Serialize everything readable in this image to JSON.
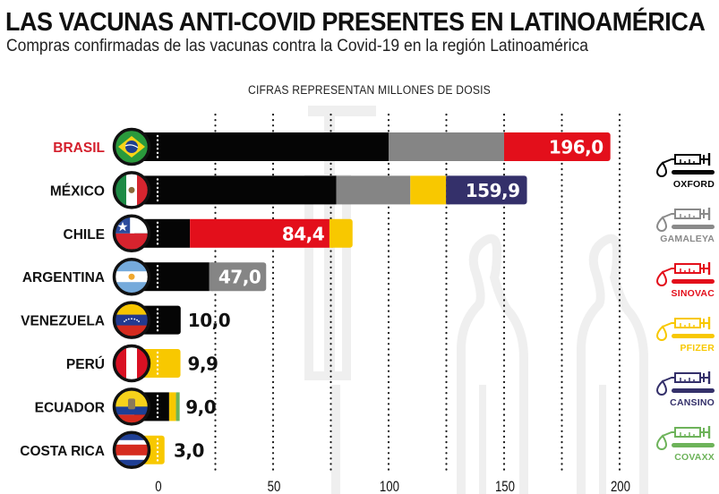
{
  "header": {
    "title": "LAS VACUNAS ANTI-COVID PRESENTES EN LATINOAMÉRICA",
    "subtitle": "Compras confirmadas de las vacunas contra la Covid-19 en la región Latinoamérica",
    "note": "CIFRAS REPRESENTAN MILLONES DE DOSIS"
  },
  "colors": {
    "OXFORD": "#050505",
    "GAMALEYA": "#858585",
    "SINOVAC": "#e30f1b",
    "PFIZER": "#f8c800",
    "CANSINO": "#34306a",
    "COVAXX": "#6db35a",
    "highlight_label": "#d41f2c",
    "gridline": "#1a1a1a",
    "watermark": "#efefef"
  },
  "legend": [
    {
      "label": "OXFORD",
      "color": "#050505",
      "icon": "syringe-icon"
    },
    {
      "label": "GAMALEYA",
      "color": "#8a8a8a",
      "icon": "syringe-icon"
    },
    {
      "label": "SINOVAC",
      "color": "#e30f1b",
      "icon": "syringe-icon"
    },
    {
      "label": "PFIZER",
      "color": "#f8c800",
      "icon": "syringe-icon"
    },
    {
      "label": "CANSINO",
      "color": "#34306a",
      "icon": "syringe-icon"
    },
    {
      "label": "COVAXX",
      "color": "#6db35a",
      "icon": "syringe-icon"
    }
  ],
  "chart_data": {
    "type": "bar",
    "orientation": "horizontal",
    "stacked": true,
    "title": "LAS VACUNAS ANTI-COVID PRESENTES EN LATINOAMÉRICA",
    "subtitle": "Compras confirmadas de las vacunas contra la Covid-19 en la región Latinoamérica",
    "xlabel": "CIFRAS REPRESENTAN MILLONES DE DOSIS",
    "ylabel": "",
    "xlim": [
      0,
      200
    ],
    "xticks": [
      0,
      50,
      100,
      150,
      200
    ],
    "grid": true,
    "grid_step": 25,
    "legend_position": "right",
    "categories": [
      "BRASIL",
      "MÉXICO",
      "CHILE",
      "ARGENTINA",
      "VENEZUELA",
      "PERÚ",
      "ECUADOR",
      "COSTA RICA"
    ],
    "highlighted_category": "BRASIL",
    "flags": [
      "brazil-flag-icon",
      "mexico-flag-icon",
      "chile-flag-icon",
      "argentina-flag-icon",
      "venezuela-flag-icon",
      "peru-flag-icon",
      "ecuador-flag-icon",
      "costa-rica-flag-icon"
    ],
    "totals": [
      196.0,
      159.9,
      84.4,
      47.0,
      10.0,
      9.9,
      9.0,
      3.0
    ],
    "total_labels": [
      "196,0",
      "159,9",
      "84,4",
      "47,0",
      "10,0",
      "9,9",
      "9,0",
      "3,0"
    ],
    "series": [
      {
        "name": "OXFORD",
        "values": [
          100.0,
          77.4,
          14.0,
          22.4,
          10.0,
          0,
          5.0,
          0
        ]
      },
      {
        "name": "GAMALEYA",
        "values": [
          50.0,
          32.0,
          0,
          24.6,
          0,
          0,
          0,
          0
        ]
      },
      {
        "name": "SINOVAC",
        "values": [
          46.0,
          0,
          60.4,
          0,
          0,
          0,
          0,
          0
        ]
      },
      {
        "name": "PFIZER",
        "values": [
          0,
          15.5,
          10.0,
          0,
          0,
          9.9,
          3.0,
          3.0
        ]
      },
      {
        "name": "CANSINO",
        "values": [
          0,
          35.0,
          0,
          0,
          0,
          0,
          0,
          0
        ]
      },
      {
        "name": "COVAXX",
        "values": [
          0,
          0,
          0,
          0,
          0,
          0,
          1.0,
          0
        ]
      }
    ]
  }
}
